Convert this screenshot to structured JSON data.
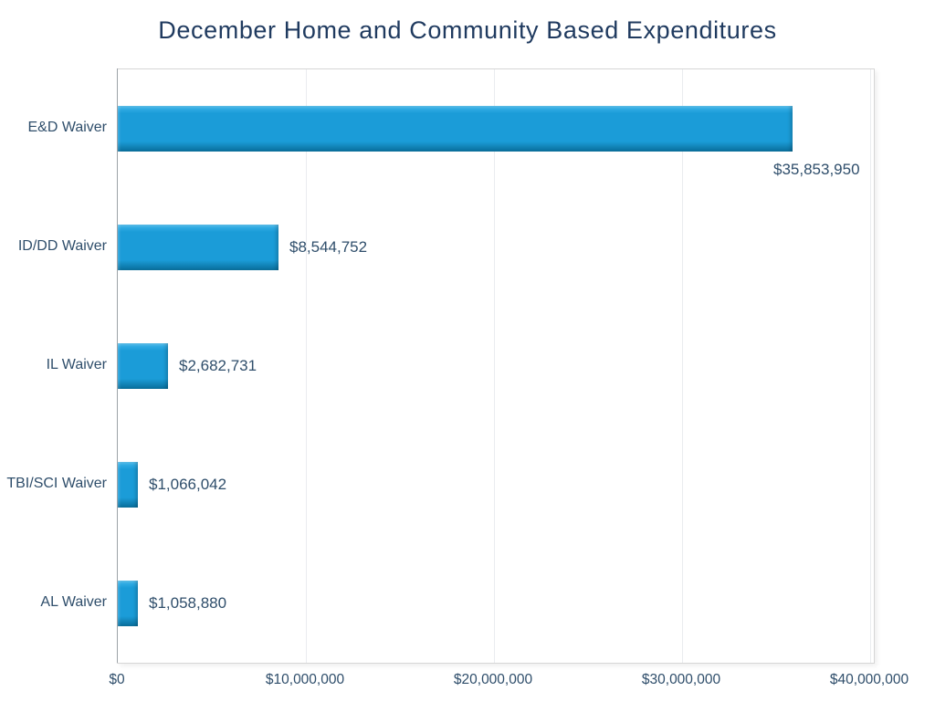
{
  "chart_data": {
    "type": "bar",
    "orientation": "horizontal",
    "title": "December Home and Community Based Expenditures",
    "categories": [
      "E&D Waiver",
      "ID/DD Waiver",
      "IL Waiver",
      "TBI/SCI Waiver",
      "AL Waiver"
    ],
    "values": [
      35853950,
      8544752,
      2682731,
      1066042,
      1058880
    ],
    "value_labels": [
      "$35,853,950",
      "$8,544,752",
      "$2,682,731",
      "$1,066,042",
      "$1,058,880"
    ],
    "x_ticks": [
      "$0",
      "$10,000,000",
      "$20,000,000",
      "$30,000,000",
      "$40,000,000"
    ],
    "xlim": [
      0,
      40000000
    ],
    "xlabel": "",
    "ylabel": "",
    "grid": true,
    "legend": false,
    "colors": {
      "bar_fill": "#1B9CD8",
      "bar_highlight": "#5EC1EC",
      "bar_shadow": "#0B76A6",
      "title_text": "#1F3A5F",
      "label_text": "#2F4E6B",
      "gridline": "#EAECEF",
      "plot_border": "#D6D6D6",
      "axis_line": "#9DA3A8"
    }
  }
}
